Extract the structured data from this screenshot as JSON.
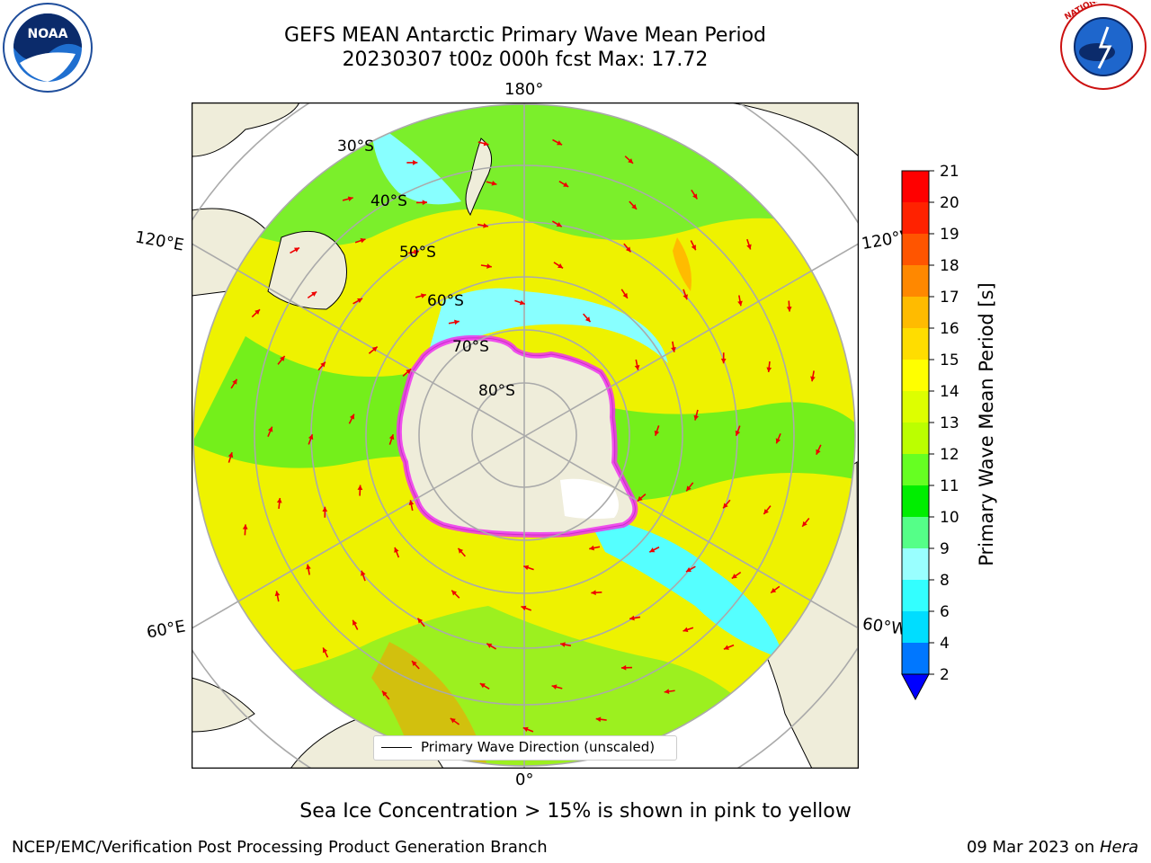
{
  "title_line1": "GEFS MEAN Antarctic Primary Wave Mean Period",
  "title_line2": "20230307 t00z 000h fcst   Max: 17.72",
  "logos": {
    "left": {
      "icon": "noaa-logo-icon",
      "text": "NOAA"
    },
    "right": {
      "icon": "nws-logo-icon",
      "text": "NATIONAL WEATHER SERVICE"
    }
  },
  "map": {
    "projection": "south-polar-stereographic",
    "longitude_labels": {
      "top": "180°",
      "upper_left": "120°E",
      "upper_right": "120°W",
      "lower_left": "60°E",
      "lower_right": "60°W",
      "bottom": "0°"
    },
    "latitude_labels": [
      "30°S",
      "40°S",
      "50°S",
      "60°S",
      "70°S",
      "80°S"
    ],
    "field_colors": {
      "ocean_yellow": "#f4f400",
      "ocean_green": "#55ee22",
      "ocean_cyan": "#55ffff",
      "land": "#efedda",
      "sea_ice": "#ee33ee",
      "arrows": "#ee0000"
    }
  },
  "legend": {
    "label": "Primary Wave Direction (unscaled)"
  },
  "colorbar": {
    "label": "Primary Wave Mean Period [s]",
    "ticks": [
      "2",
      "4",
      "6",
      "8",
      "9",
      "10",
      "11",
      "12",
      "13",
      "14",
      "15",
      "16",
      "17",
      "18",
      "19",
      "20",
      "21"
    ],
    "colors": [
      "#0000ff",
      "#0077ff",
      "#00ddff",
      "#33ffff",
      "#99ffff",
      "#55ff88",
      "#00ee00",
      "#66ff22",
      "#bbff00",
      "#ddff00",
      "#ffff00",
      "#ffdd00",
      "#ffbb00",
      "#ff8800",
      "#ff5500",
      "#ff2200",
      "#ff0000"
    ]
  },
  "footnote": "Sea Ice Concentration > 15% is shown in pink to yellow",
  "footer_left": "NCEP/EMC/Verification Post Processing Product Generation Branch",
  "footer_right_date": "09 Mar 2023 on ",
  "footer_right_machine": "Hera"
}
